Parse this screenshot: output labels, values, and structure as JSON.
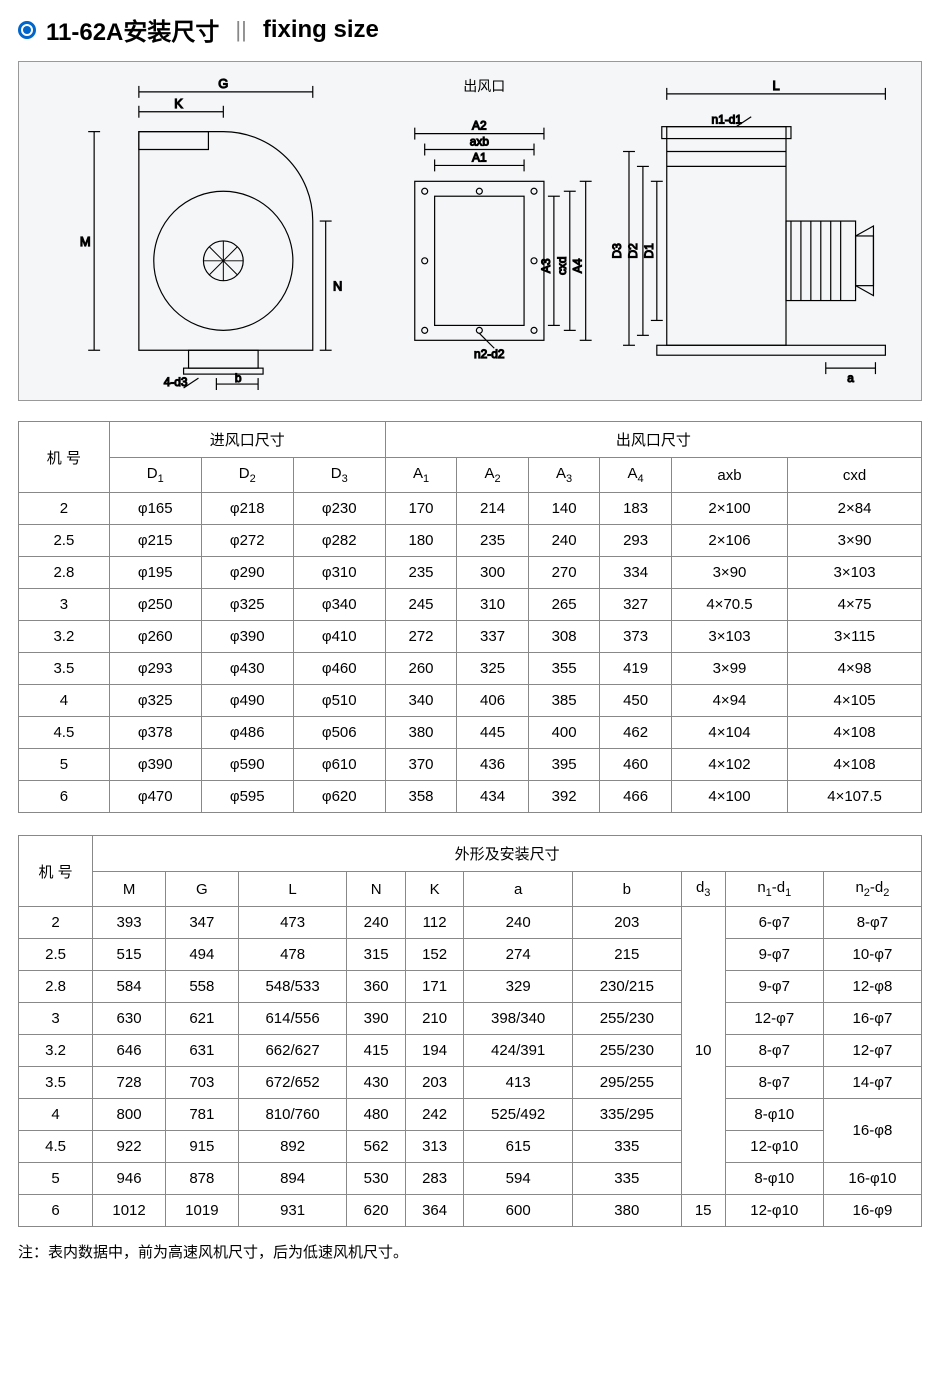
{
  "title_cn": "11-62A安装尺寸",
  "title_sep": "||",
  "title_en": "fixing size",
  "diagram_label_outlet": "出风口",
  "diagram_dim_labels": {
    "G": "G",
    "K": "K",
    "M": "M",
    "N": "N",
    "b": "b",
    "d3": "4-d3",
    "A1": "A1",
    "A2": "A2",
    "axb": "axb",
    "A3": "A3",
    "A4": "A4",
    "cxd": "cxd",
    "n2d2": "n2-d2",
    "L": "L",
    "D1": "D1",
    "D2": "D2",
    "D3": "D3",
    "a": "a",
    "n1d1": "n1-d1"
  },
  "table1": {
    "header_machine": "机 号",
    "header_inlet": "进风口尺寸",
    "header_outlet": "出风口尺寸",
    "cols": [
      "D₁",
      "D₂",
      "D₃",
      "A₁",
      "A₂",
      "A₃",
      "A₄",
      "axb",
      "cxd"
    ],
    "col_html": [
      "D<span class='sub'>1</span>",
      "D<span class='sub'>2</span>",
      "D<span class='sub'>3</span>",
      "A<span class='sub'>1</span>",
      "A<span class='sub'>2</span>",
      "A<span class='sub'>3</span>",
      "A<span class='sub'>4</span>",
      "axb",
      "cxd"
    ],
    "rows": [
      [
        "2",
        "φ165",
        "φ218",
        "φ230",
        "170",
        "214",
        "140",
        "183",
        "2×100",
        "2×84"
      ],
      [
        "2.5",
        "φ215",
        "φ272",
        "φ282",
        "180",
        "235",
        "240",
        "293",
        "2×106",
        "3×90"
      ],
      [
        "2.8",
        "φ195",
        "φ290",
        "φ310",
        "235",
        "300",
        "270",
        "334",
        "3×90",
        "3×103"
      ],
      [
        "3",
        "φ250",
        "φ325",
        "φ340",
        "245",
        "310",
        "265",
        "327",
        "4×70.5",
        "4×75"
      ],
      [
        "3.2",
        "φ260",
        "φ390",
        "φ410",
        "272",
        "337",
        "308",
        "373",
        "3×103",
        "3×115"
      ],
      [
        "3.5",
        "φ293",
        "φ430",
        "φ460",
        "260",
        "325",
        "355",
        "419",
        "3×99",
        "4×98"
      ],
      [
        "4",
        "φ325",
        "φ490",
        "φ510",
        "340",
        "406",
        "385",
        "450",
        "4×94",
        "4×105"
      ],
      [
        "4.5",
        "φ378",
        "φ486",
        "φ506",
        "380",
        "445",
        "400",
        "462",
        "4×104",
        "4×108"
      ],
      [
        "5",
        "φ390",
        "φ590",
        "φ610",
        "370",
        "436",
        "395",
        "460",
        "4×102",
        "4×108"
      ],
      [
        "6",
        "φ470",
        "φ595",
        "φ620",
        "358",
        "434",
        "392",
        "466",
        "4×100",
        "4×107.5"
      ]
    ]
  },
  "table2": {
    "header_machine": "机 号",
    "header_shape": "外形及安装尺寸",
    "cols": [
      "M",
      "G",
      "L",
      "N",
      "K",
      "a",
      "b",
      "d₃",
      "n₁-d₁",
      "n₂-d₂"
    ],
    "col_html": [
      "M",
      "G",
      "L",
      "N",
      "K",
      "a",
      "b",
      "d<span class='sub'>3</span>",
      "n<span class='sub'>1</span>-d<span class='sub'>1</span>",
      "n<span class='sub'>2</span>-d<span class='sub'>2</span>"
    ],
    "rows": [
      [
        "2",
        "393",
        "347",
        "473",
        "240",
        "112",
        "240",
        "203",
        null,
        "6-φ7",
        "8-φ7"
      ],
      [
        "2.5",
        "515",
        "494",
        "478",
        "315",
        "152",
        "274",
        "215",
        null,
        "9-φ7",
        "10-φ7"
      ],
      [
        "2.8",
        "584",
        "558",
        "548/533",
        "360",
        "171",
        "329",
        "230/215",
        null,
        "9-φ7",
        "12-φ8"
      ],
      [
        "3",
        "630",
        "621",
        "614/556",
        "390",
        "210",
        "398/340",
        "255/230",
        null,
        "12-φ7",
        "16-φ7"
      ],
      [
        "3.2",
        "646",
        "631",
        "662/627",
        "415",
        "194",
        "424/391",
        "255/230",
        null,
        "8-φ7",
        "12-φ7"
      ],
      [
        "3.5",
        "728",
        "703",
        "672/652",
        "430",
        "203",
        "413",
        "295/255",
        null,
        "8-φ7",
        "14-φ7"
      ],
      [
        "4",
        "800",
        "781",
        "810/760",
        "480",
        "242",
        "525/492",
        "335/295",
        null,
        "8-φ10",
        null
      ],
      [
        "4.5",
        "922",
        "915",
        "892",
        "562",
        "313",
        "615",
        "335",
        null,
        "12-φ10",
        null
      ],
      [
        "5",
        "946",
        "878",
        "894",
        "530",
        "283",
        "594",
        "335",
        null,
        "8-φ10",
        "16-φ10"
      ],
      [
        "6",
        "1012",
        "1019",
        "931",
        "620",
        "364",
        "600",
        "380",
        "15",
        "12-φ10",
        "16-φ9"
      ]
    ],
    "d3_merged_value": "10",
    "d3_merged_span": 9,
    "n2d2_merged_value": "16-φ8",
    "n2d2_merged_start_row": 6,
    "n2d2_merged_span": 2
  },
  "note": "注：表内数据中，前为高速风机尺寸，后为低速风机尺寸。",
  "colors": {
    "accent": "#0066cc",
    "border": "#888888",
    "bg_diagram": "#f5f6f8"
  }
}
